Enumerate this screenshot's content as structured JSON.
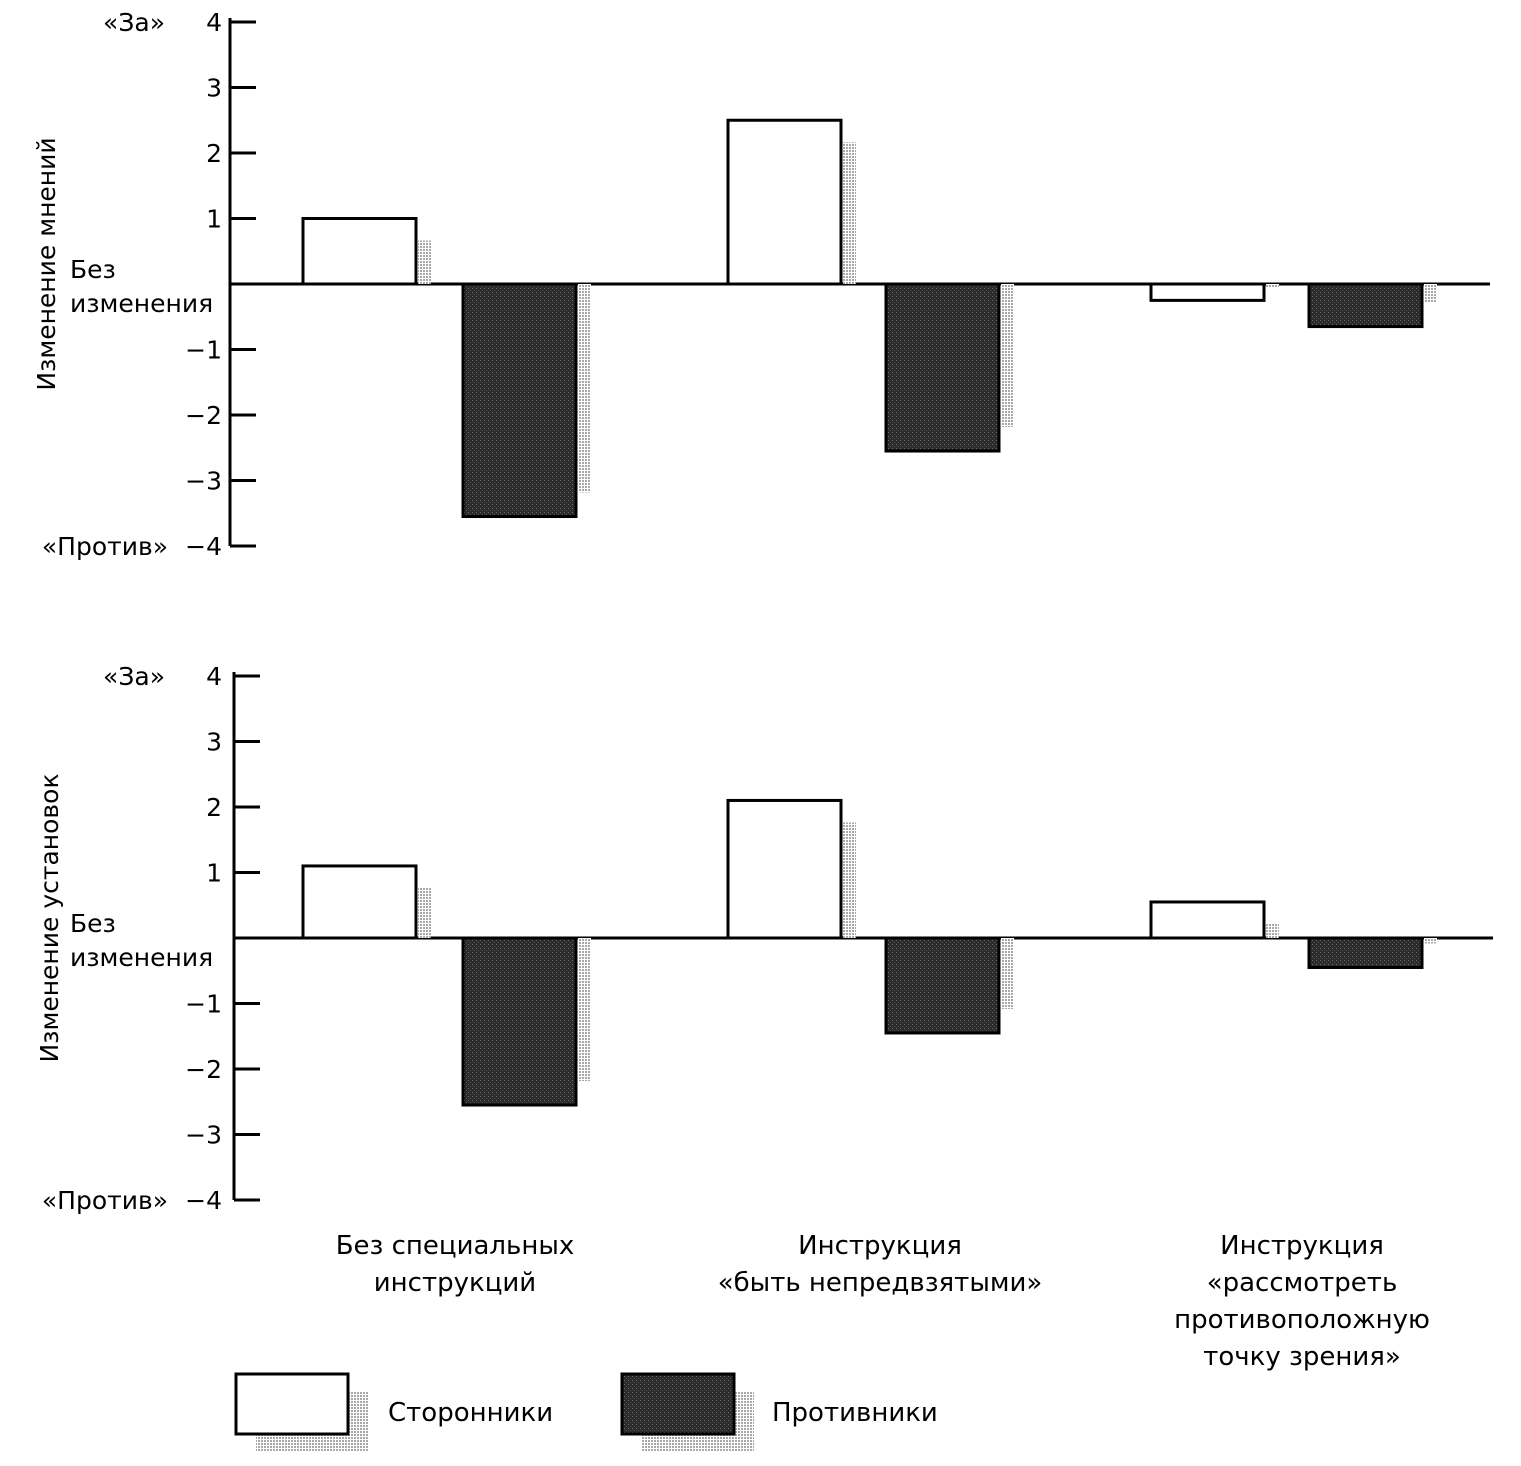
{
  "chart_data": [
    {
      "type": "bar",
      "ylabel": "Изменение мнений",
      "ylim": [
        -4,
        4
      ],
      "yticks": [
        "«За»",
        "4",
        "3",
        "2",
        "1",
        "Без",
        "изменения",
        "−1",
        "−2",
        "−3",
        "«Против»",
        "−4"
      ],
      "categories": [
        "Без специальных инструкций",
        "Инструкция «быть непредвзятыми»",
        "Инструкция «рассмотреть противоположную точку зрения»"
      ],
      "series": [
        {
          "name": "Сторонники",
          "values": [
            1.0,
            2.5,
            -0.25
          ]
        },
        {
          "name": "Противники",
          "values": [
            -3.55,
            -2.55,
            -0.65
          ]
        }
      ]
    },
    {
      "type": "bar",
      "ylabel": "Изменение установок",
      "ylim": [
        -4,
        4
      ],
      "yticks": [
        "«За»",
        "4",
        "3",
        "2",
        "1",
        "Без",
        "изменения",
        "−1",
        "−2",
        "−3",
        "«Против»",
        "−4"
      ],
      "categories": [
        "Без специальных инструкций",
        "Инструкция «быть непредвзятыми»",
        "Инструкция «рассмотреть противоположную точку зрения»"
      ],
      "series": [
        {
          "name": "Сторонники",
          "values": [
            1.1,
            2.1,
            0.55
          ]
        },
        {
          "name": "Противники",
          "values": [
            -2.55,
            -1.45,
            -0.45
          ]
        }
      ]
    }
  ],
  "category_labels": [
    [
      "Без специальных",
      "инструкций"
    ],
    [
      "Инструкция",
      "«быть непредвзятыми»"
    ],
    [
      "Инструкция",
      "«рассмотреть",
      "противоположную",
      "точку зрения»"
    ]
  ],
  "legend": [
    {
      "label": "Сторонники",
      "color": "#ffffff"
    },
    {
      "label": "Противники",
      "color": "#2b2b2b"
    }
  ],
  "colors": {
    "supporters": "#ffffff",
    "opponents": "#2b2b2b",
    "shadow": "#bdbdbd",
    "ink": "#000000"
  }
}
